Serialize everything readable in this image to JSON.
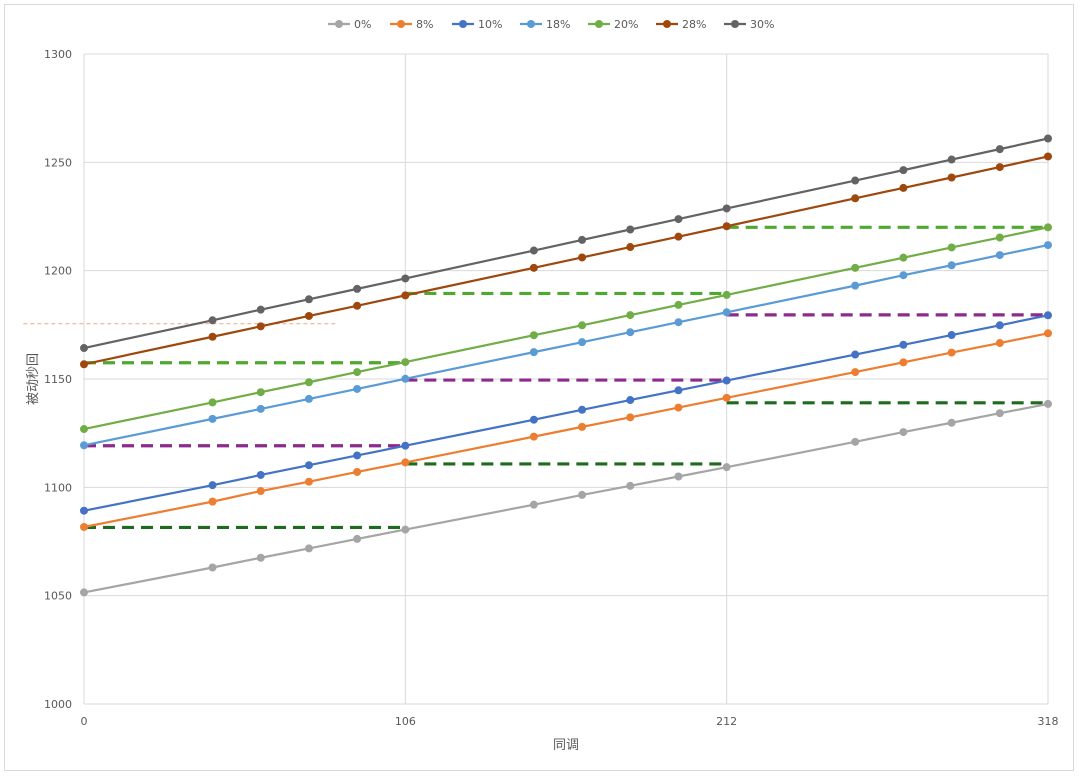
{
  "chart_data": {
    "type": "line",
    "title": "",
    "xlabel": "同调",
    "ylabel": "被动秒回",
    "x_ticks": [
      0,
      106,
      212,
      318
    ],
    "y_ticks": [
      1000,
      1050,
      1100,
      1150,
      1200,
      1250,
      1300
    ],
    "xlim": [
      0,
      318
    ],
    "ylim": [
      1000,
      1300
    ],
    "grid": true,
    "legend_position": "top",
    "x": [
      0,
      42.4,
      58.3,
      74.2,
      90.1,
      106,
      148.4,
      164.3,
      180.2,
      196.1,
      212,
      254.4,
      270.3,
      286.2,
      302.1,
      318
    ],
    "series": [
      {
        "name": "0%",
        "color": "#a5a5a5",
        "values": [
          1051.5,
          1063,
          1067.5,
          1071.8,
          1076.2,
          1080.5,
          1092,
          1096.5,
          1100.7,
          1105,
          1109.3,
          1121,
          1125.5,
          1129.8,
          1134.2,
          1138.5
        ]
      },
      {
        "name": "8%",
        "color": "#ed7d31",
        "values": [
          1081.7,
          1093.4,
          1098.3,
          1102.6,
          1107.1,
          1111.5,
          1123.4,
          1127.9,
          1132.3,
          1136.8,
          1141.3,
          1153.2,
          1157.7,
          1162.2,
          1166.6,
          1171.1
        ]
      },
      {
        "name": "10%",
        "color": "#4472c4",
        "values": [
          1089.2,
          1101,
          1105.7,
          1110.2,
          1114.7,
          1119.2,
          1131.2,
          1135.8,
          1140.3,
          1144.8,
          1149.3,
          1161.3,
          1165.8,
          1170.3,
          1174.8,
          1179.4
        ]
      },
      {
        "name": "18%",
        "color": "#5b9bd5",
        "values": [
          1119.4,
          1131.6,
          1136.2,
          1140.8,
          1145.4,
          1150.1,
          1162.4,
          1167,
          1171.6,
          1176.2,
          1180.8,
          1193.1,
          1197.9,
          1202.5,
          1207.2,
          1211.8
        ]
      },
      {
        "name": "20%",
        "color": "#70ad47",
        "values": [
          1126.9,
          1139.2,
          1143.9,
          1148.5,
          1153.2,
          1157.8,
          1170.2,
          1174.8,
          1179.5,
          1184.2,
          1188.8,
          1201.3,
          1206,
          1210.7,
          1215.3,
          1220
        ]
      },
      {
        "name": "28%",
        "color": "#9e480e",
        "values": [
          1156.8,
          1169.5,
          1174.3,
          1179.1,
          1183.8,
          1188.6,
          1201.3,
          1206.1,
          1210.9,
          1215.7,
          1220.5,
          1233.4,
          1238.2,
          1243,
          1247.8,
          1252.7
        ]
      },
      {
        "name": "30%",
        "color": "#636363",
        "values": [
          1164.3,
          1177.1,
          1182,
          1186.8,
          1191.6,
          1196.4,
          1209.3,
          1214.2,
          1219,
          1223.8,
          1228.7,
          1241.6,
          1246.4,
          1251.3,
          1256.1,
          1261
        ]
      }
    ],
    "reference_lines": [
      {
        "color": "#1e6b1e",
        "y": 1081.5,
        "x": [
          0,
          106
        ]
      },
      {
        "color": "#1e6b1e",
        "y": 1110.8,
        "x": [
          106,
          212
        ]
      },
      {
        "color": "#1e6b1e",
        "y": 1139,
        "x": [
          212,
          318
        ]
      },
      {
        "color": "#8b2b8b",
        "y": 1119.2,
        "x": [
          0,
          106
        ]
      },
      {
        "color": "#8b2b8b",
        "y": 1149.5,
        "x": [
          106,
          212
        ]
      },
      {
        "color": "#8b2b8b",
        "y": 1179.6,
        "x": [
          212,
          318
        ]
      },
      {
        "color": "#4fa830",
        "y": 1157.5,
        "x": [
          0,
          106
        ]
      },
      {
        "color": "#4fa830",
        "y": 1189.5,
        "x": [
          106,
          212
        ]
      },
      {
        "color": "#4fa830",
        "y": 1220,
        "x": [
          212,
          318
        ]
      },
      {
        "color": "#f4a582",
        "y": 1175.5,
        "x": [
          -20,
          83
        ],
        "thin": true
      }
    ]
  }
}
